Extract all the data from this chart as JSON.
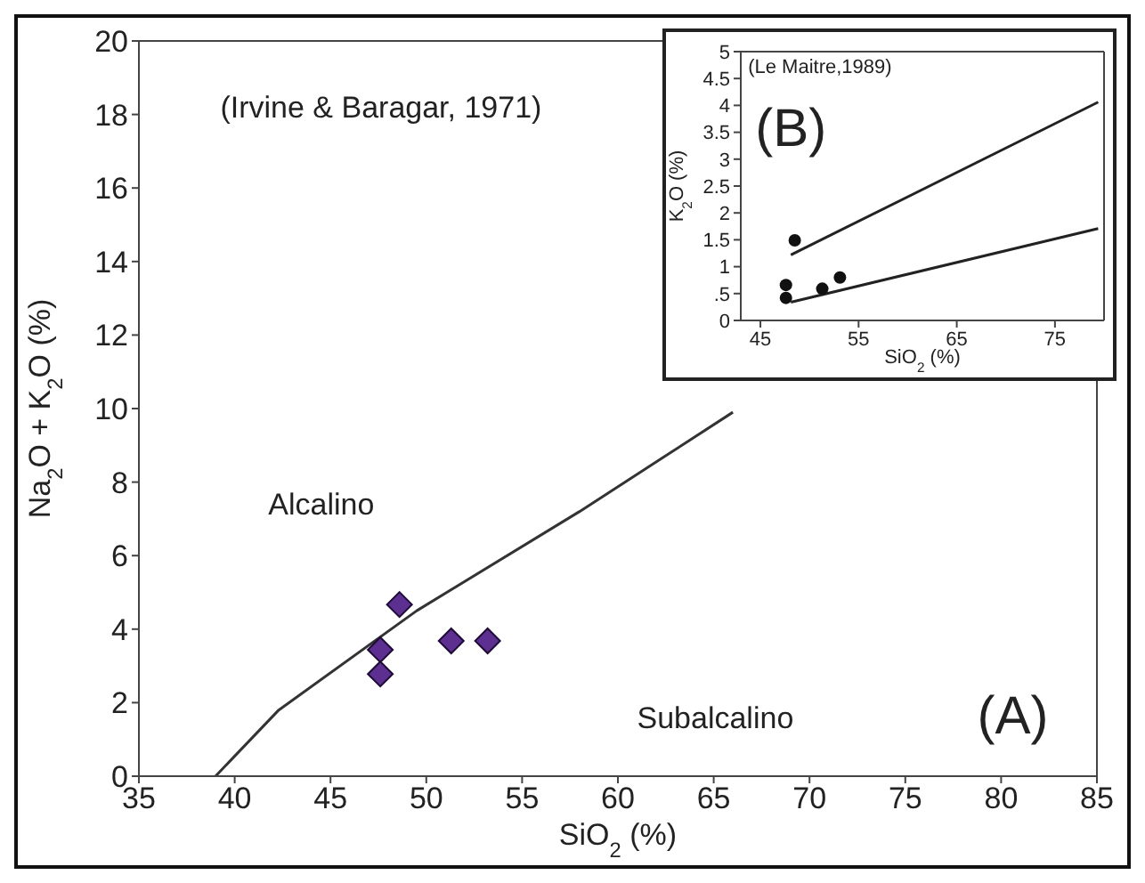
{
  "chart_data": [
    {
      "type": "scatter",
      "xlabel": "SiO$_{2}$ (%)",
      "ylabel": "Na$_{2}$O + K$_{2}$O (%)",
      "xlim": [
        35,
        85
      ],
      "xticks": [
        35,
        40,
        45,
        50,
        55,
        60,
        65,
        70,
        75,
        80,
        85
      ],
      "ylim": [
        0,
        20
      ],
      "yticks": [
        0,
        2,
        4,
        6,
        8,
        10,
        12,
        14,
        16,
        18,
        20
      ],
      "grid": false,
      "legend": false,
      "annotations": [
        "(Irvine & Baragar, 1971)",
        "Alcalino",
        "Subalcalino",
        "(A)"
      ],
      "series": [
        {
          "type": "line",
          "color": "#333333",
          "marker": "none",
          "line_style": "solid",
          "x": [
            39,
            42.3,
            49.5,
            58,
            66
          ],
          "values": [
            0,
            1.8,
            4.5,
            7.2,
            9.9
          ]
        },
        {
          "color": "#5c2f91",
          "marker": "diamond",
          "x": [
            48.6,
            47.6,
            47.6,
            51.3,
            53.2
          ],
          "values": [
            4.67,
            3.44,
            2.78,
            3.68,
            3.68
          ]
        }
      ]
    },
    {
      "type": "scatter",
      "xlabel": "SiO$_{2}$ (%)",
      "ylabel": "K$_{2}$O (%)",
      "xlim": [
        43,
        80
      ],
      "xticks": [
        45,
        55,
        65,
        75
      ],
      "ylim": [
        0,
        5
      ],
      "yticks": [
        0,
        {
          "value": 0.5,
          "label": ".5"
        },
        1,
        1.5,
        2,
        2.5,
        3,
        3.5,
        4,
        4.5,
        5
      ],
      "grid": false,
      "legend": false,
      "annotations": [
        "(Le Maitre,1989)",
        "(B)"
      ],
      "series": [
        {
          "type": "line",
          "color": "#222222",
          "marker": "none",
          "line_style": "solid",
          "x": [
            48.1,
            79.4
          ],
          "values": [
            1.22,
            4.06
          ]
        },
        {
          "type": "line",
          "color": "#222222",
          "marker": "none",
          "line_style": "solid",
          "x": [
            48.1,
            79.4
          ],
          "values": [
            0.34,
            1.71
          ]
        },
        {
          "color": "#111111",
          "marker": "circle",
          "x": [
            48.5,
            47.6,
            47.6,
            51.3,
            53.1
          ],
          "values": [
            1.49,
            0.66,
            0.42,
            0.59,
            0.8
          ]
        }
      ]
    }
  ]
}
